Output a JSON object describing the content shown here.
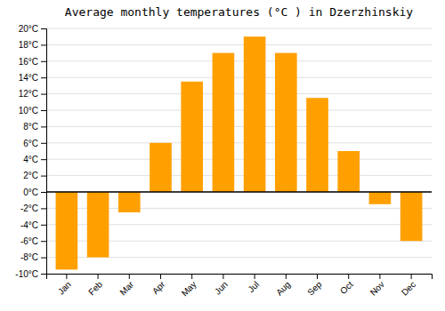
{
  "chart_data": {
    "type": "bar",
    "title": "Average monthly temperatures (°C ) in Dzerzhinskiy",
    "categories": [
      "Jan",
      "Feb",
      "Mar",
      "Apr",
      "May",
      "Jun",
      "Jul",
      "Aug",
      "Sep",
      "Oct",
      "Nov",
      "Dec"
    ],
    "values": [
      -9.5,
      -8.0,
      -2.5,
      6.0,
      13.5,
      17.0,
      19.0,
      17.0,
      11.5,
      5.0,
      -1.5,
      -6.0
    ],
    "color": "#FFA000",
    "ylim": [
      -10,
      20
    ],
    "yticks": [
      {
        "value": -10,
        "label": "-10°C"
      },
      {
        "value": -8,
        "label": "-8°C"
      },
      {
        "value": -6,
        "label": "-6°C"
      },
      {
        "value": -4,
        "label": "-4°C"
      },
      {
        "value": -2,
        "label": "-2°C"
      },
      {
        "value": 0,
        "label": "0°C"
      },
      {
        "value": 2,
        "label": "2°C"
      },
      {
        "value": 4,
        "label": "4°C"
      },
      {
        "value": 6,
        "label": "6°C"
      },
      {
        "value": 8,
        "label": "8°C"
      },
      {
        "value": 10,
        "label": "10°C"
      },
      {
        "value": 12,
        "label": "12°C"
      },
      {
        "value": 14,
        "label": "14°C"
      },
      {
        "value": 16,
        "label": "16°C"
      },
      {
        "value": 18,
        "label": "18°C"
      },
      {
        "value": 20,
        "label": "20°C"
      }
    ],
    "grid": true
  }
}
